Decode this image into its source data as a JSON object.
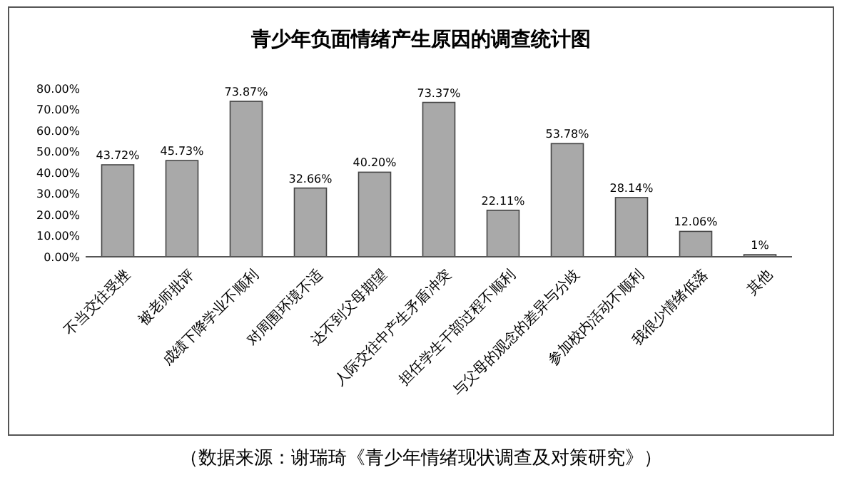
{
  "chart_data": {
    "type": "bar",
    "title": "青少年负面情绪产生原因的调查统计图",
    "categories": [
      "不当交往受挫",
      "被老师批评",
      "成绩下降学业不顺利",
      "对周围环境不适",
      "达不到父母期望",
      "人际交往中产生矛盾冲突",
      "担任学生干部过程不顺利",
      "与父母的观念的差异与分歧",
      "参加校内活动不顺利",
      "我很少情绪低落",
      "其他"
    ],
    "values": [
      43.72,
      45.73,
      73.87,
      32.66,
      40.2,
      73.37,
      22.11,
      53.78,
      28.14,
      12.06,
      1
    ],
    "value_labels": [
      "43.72%",
      "45.73%",
      "73.87%",
      "32.66%",
      "40.20%",
      "73.37%",
      "22.11%",
      "53.78%",
      "28.14%",
      "12.06%",
      "1%"
    ],
    "color": "#a9a9a9",
    "ylim": [
      0,
      80
    ],
    "yticks": [
      {
        "value": 0,
        "label": "0.00%"
      },
      {
        "value": 10,
        "label": "10.00%"
      },
      {
        "value": 20,
        "label": "20.00%"
      },
      {
        "value": 30,
        "label": "30.00%"
      },
      {
        "value": 40,
        "label": "40.00%"
      },
      {
        "value": 50,
        "label": "50.00%"
      },
      {
        "value": 60,
        "label": "60.00%"
      },
      {
        "value": 70,
        "label": "70.00%"
      },
      {
        "value": 80,
        "label": "80.00%"
      }
    ],
    "grid": false,
    "annotations": [
      "（数据来源：谢瑞琦《青少年情绪现状调查及对策研究》）"
    ]
  }
}
